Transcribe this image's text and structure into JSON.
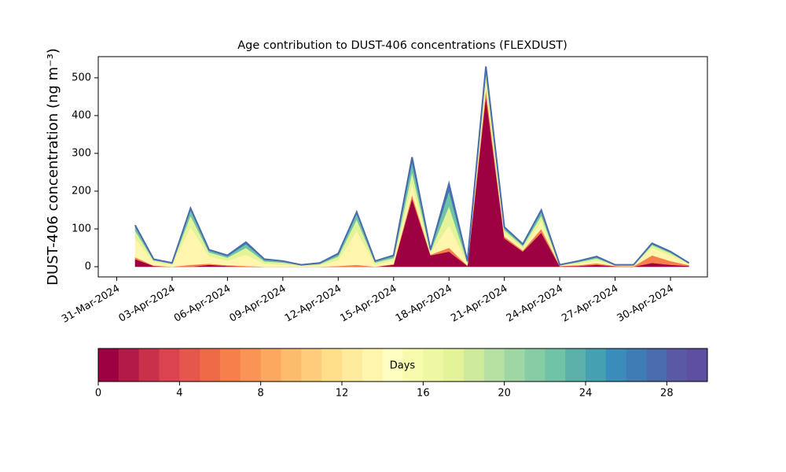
{
  "chart_data": {
    "type": "stacked_area",
    "title": "Age contribution to DUST-406 concentrations (FLEXDUST)",
    "ylabel": "DUST-406 concentration (ng m⁻³)",
    "x": [
      "2024-04-01",
      "2024-04-02",
      "2024-04-03",
      "2024-04-04",
      "2024-04-05",
      "2024-04-06",
      "2024-04-07",
      "2024-04-08",
      "2024-04-09",
      "2024-04-10",
      "2024-04-11",
      "2024-04-12",
      "2024-04-13",
      "2024-04-14",
      "2024-04-15",
      "2024-04-16",
      "2024-04-17",
      "2024-04-18",
      "2024-04-19",
      "2024-04-20",
      "2024-04-21",
      "2024-04-22",
      "2024-04-23",
      "2024-04-24",
      "2024-04-25",
      "2024-04-26",
      "2024-04-27",
      "2024-04-28",
      "2024-04-29",
      "2024-04-30",
      "2024-05-01"
    ],
    "series": [
      {
        "color": "#9e0142",
        "values": [
          20,
          2,
          0,
          0,
          5,
          2,
          0,
          0,
          0,
          0,
          0,
          0,
          0,
          0,
          5,
          180,
          30,
          40,
          2,
          450,
          75,
          40,
          90,
          1,
          2,
          5,
          1,
          0,
          10,
          5,
          2
        ]
      },
      {
        "color": "#f67f4b",
        "values": [
          5,
          1,
          0,
          5,
          3,
          2,
          2,
          0,
          0,
          0,
          0,
          2,
          5,
          0,
          2,
          10,
          2,
          10,
          1,
          20,
          5,
          3,
          10,
          1,
          2,
          4,
          1,
          1,
          20,
          10,
          2
        ]
      },
      {
        "color": "#fff5ac",
        "values": [
          50,
          10,
          5,
          100,
          20,
          12,
          30,
          8,
          6,
          2,
          4,
          15,
          90,
          6,
          10,
          30,
          5,
          60,
          5,
          20,
          10,
          7,
          20,
          1,
          5,
          8,
          1,
          2,
          20,
          15,
          3
        ]
      },
      {
        "color": "#e2f398",
        "values": [
          20,
          4,
          3,
          30,
          10,
          8,
          18,
          6,
          5,
          2,
          3,
          10,
          30,
          5,
          6,
          30,
          4,
          50,
          4,
          20,
          7,
          5,
          15,
          1,
          3,
          5,
          1,
          1,
          7,
          6,
          2
        ]
      },
      {
        "color": "#70c3a6",
        "values": [
          10,
          2,
          1,
          15,
          5,
          4,
          10,
          4,
          3,
          1,
          2,
          5,
          15,
          3,
          5,
          25,
          3,
          40,
          2,
          12,
          5,
          3,
          10,
          1,
          2,
          3,
          1,
          1,
          3,
          3,
          1
        ]
      },
      {
        "color": "#3f7cb5",
        "values": [
          5,
          1,
          1,
          5,
          2,
          2,
          5,
          2,
          1,
          0,
          1,
          3,
          5,
          1,
          2,
          15,
          1,
          20,
          1,
          8,
          3,
          2,
          5,
          0,
          1,
          2,
          0,
          0,
          2,
          1,
          0
        ]
      }
    ],
    "line_color": "#4a6bae",
    "xlim": [
      "2024-03-30",
      "2024-05-02"
    ],
    "xticks": [
      {
        "value": "2024-03-31",
        "label": "31-Mar-2024"
      },
      {
        "value": "2024-04-03",
        "label": "03-Apr-2024"
      },
      {
        "value": "2024-04-06",
        "label": "06-Apr-2024"
      },
      {
        "value": "2024-04-09",
        "label": "09-Apr-2024"
      },
      {
        "value": "2024-04-12",
        "label": "12-Apr-2024"
      },
      {
        "value": "2024-04-15",
        "label": "15-Apr-2024"
      },
      {
        "value": "2024-04-18",
        "label": "18-Apr-2024"
      },
      {
        "value": "2024-04-21",
        "label": "21-Apr-2024"
      },
      {
        "value": "2024-04-24",
        "label": "24-Apr-2024"
      },
      {
        "value": "2024-04-27",
        "label": "27-Apr-2024"
      },
      {
        "value": "2024-04-30",
        "label": "30-Apr-2024"
      }
    ],
    "ylim": [
      -27,
      556
    ],
    "yticks": [
      0,
      100,
      200,
      300,
      400,
      500
    ],
    "colorbar": {
      "label": "Days",
      "lim": [
        0,
        30
      ],
      "ticks": [
        0,
        4,
        8,
        12,
        16,
        20,
        24,
        28
      ],
      "colors": [
        "#9e0142",
        "#b31a47",
        "#c9314b",
        "#dc4350",
        "#e5564c",
        "#ee6a46",
        "#f67f4b",
        "#f99455",
        "#fca95f",
        "#fdbc6c",
        "#fdcd7a",
        "#fede89",
        "#feea9b",
        "#fff5ac",
        "#feffbe",
        "#f7fbae",
        "#eef8a2",
        "#e2f398",
        "#cdea9d",
        "#b6e1a2",
        "#9ed7a4",
        "#86cda5",
        "#70c3a6",
        "#5bb1a9",
        "#45a0b1",
        "#3a8dba",
        "#3f7cb5",
        "#4a6bae",
        "#5a59a6",
        "#5e4fa2"
      ]
    }
  }
}
